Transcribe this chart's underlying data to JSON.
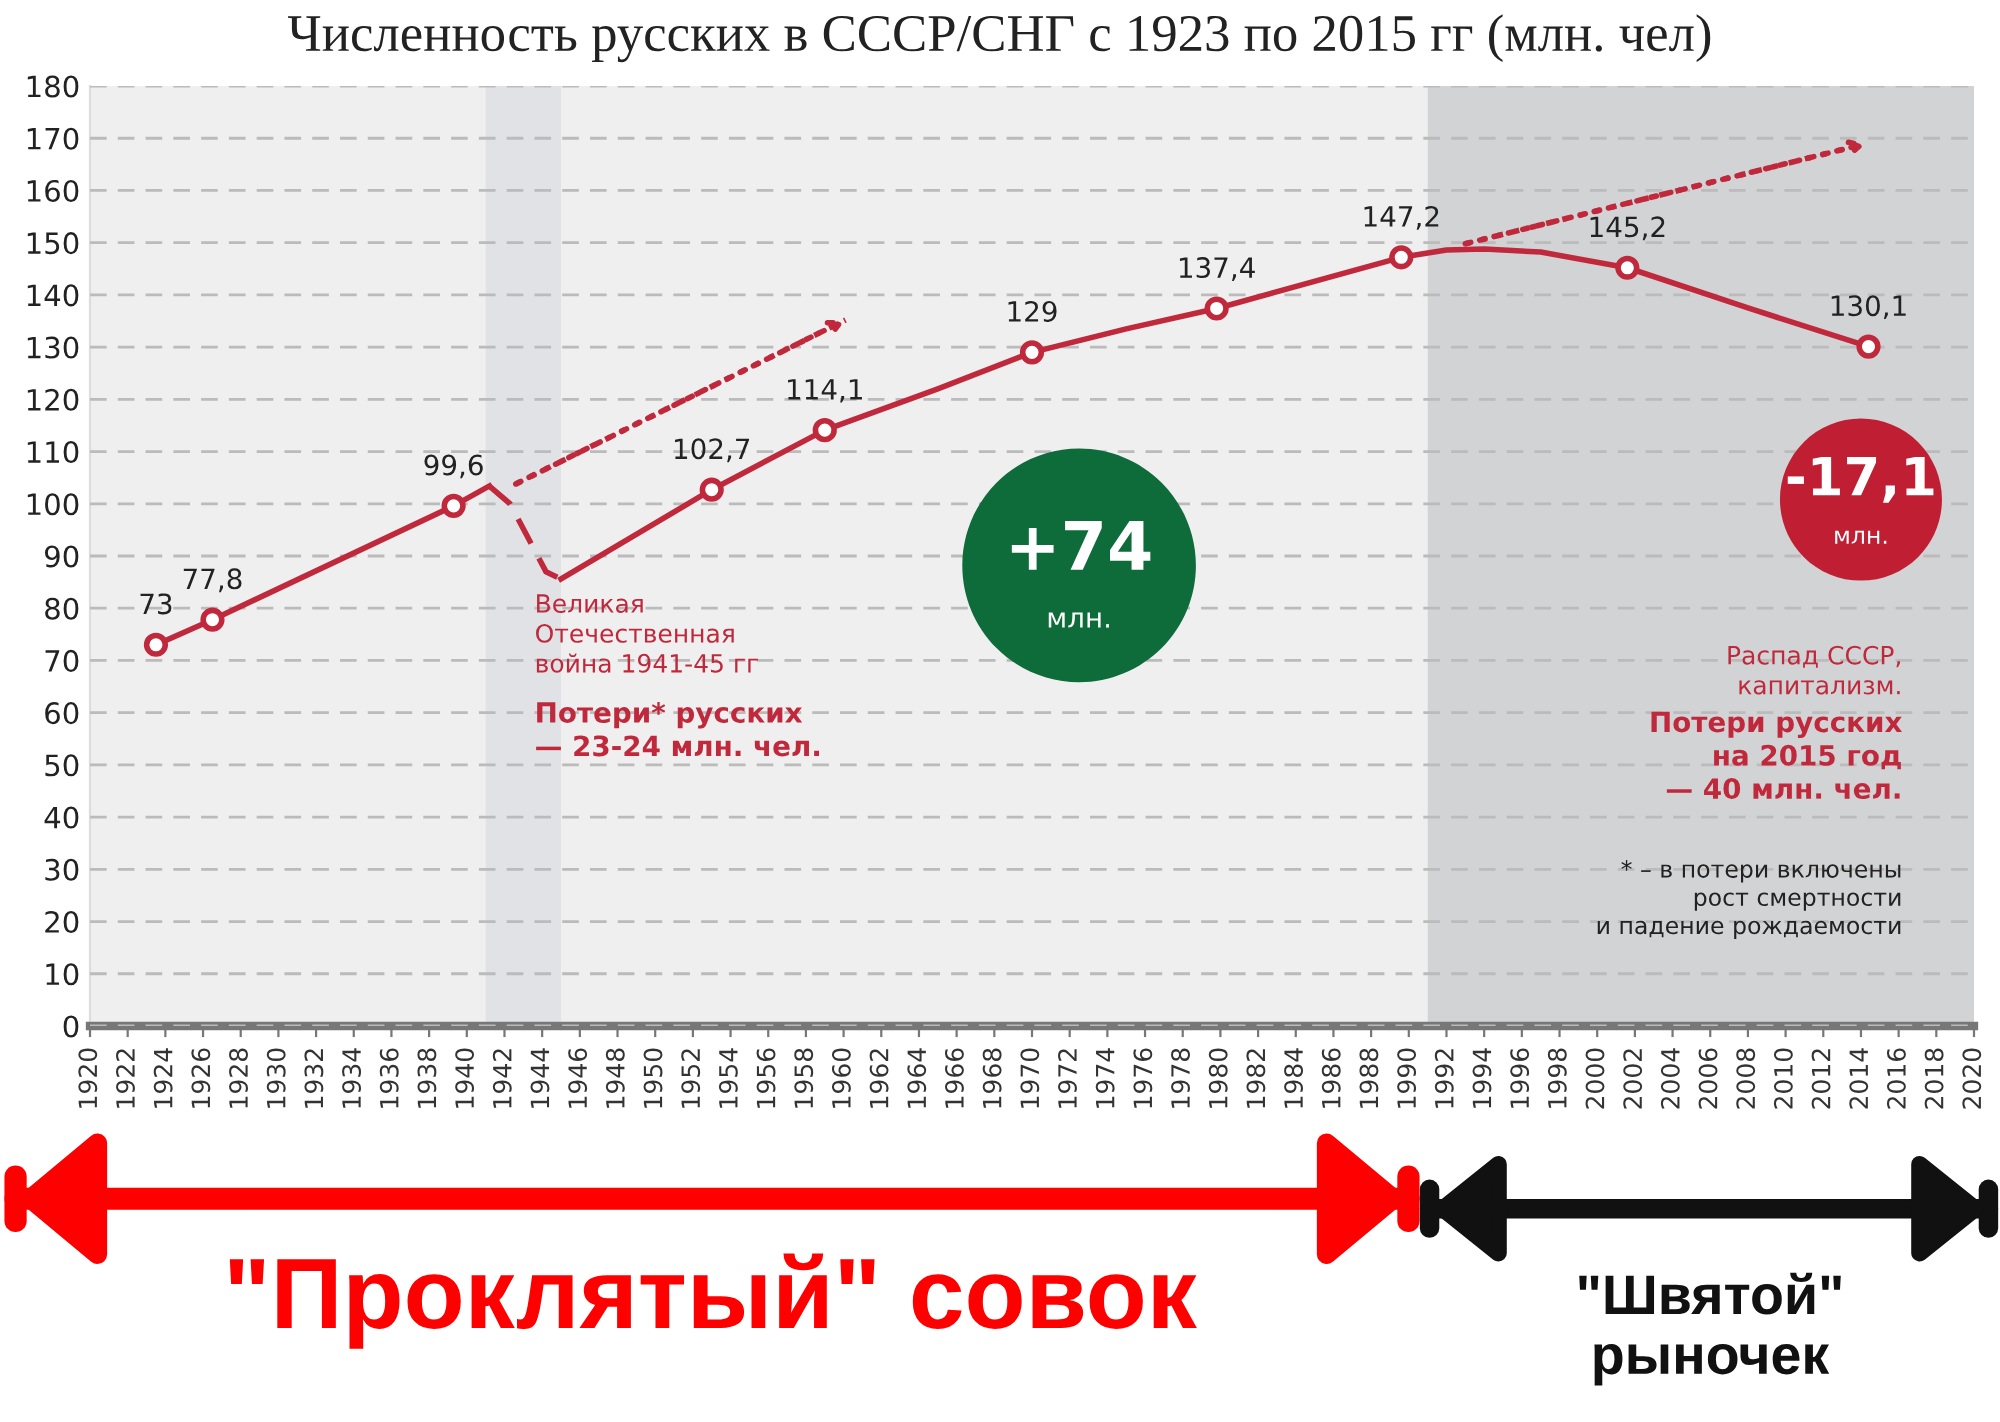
{
  "chart_data": {
    "type": "line",
    "title": "Численность русских в СССР/СНГ с 1923 по 2015 гг (млн. чел)",
    "xlim": [
      1920,
      2020
    ],
    "xticks": [
      1920,
      1922,
      1924,
      1926,
      1928,
      1930,
      1932,
      1934,
      1936,
      1938,
      1940,
      1942,
      1944,
      1946,
      1948,
      1950,
      1952,
      1954,
      1956,
      1958,
      1960,
      1962,
      1964,
      1966,
      1968,
      1970,
      1972,
      1974,
      1976,
      1978,
      1980,
      1982,
      1984,
      1986,
      1988,
      1990,
      1992,
      1994,
      1996,
      1998,
      2000,
      2002,
      2004,
      2006,
      2008,
      2010,
      2012,
      2014,
      2016,
      2018,
      2020
    ],
    "ylim": [
      0,
      180
    ],
    "yticks": [
      0,
      10,
      20,
      30,
      40,
      50,
      60,
      70,
      80,
      90,
      100,
      110,
      120,
      130,
      140,
      150,
      160,
      170,
      180
    ],
    "grid": "y",
    "legend": false,
    "series": [
      {
        "type": "line",
        "color": "#c0283c",
        "line_style": "solid",
        "x": [
          1923.5,
          1926.5,
          1939.3,
          1941.2
        ],
        "values": [
          73,
          77.8,
          99.6,
          103.4
        ]
      },
      {
        "type": "line",
        "color": "#c0283c",
        "line_style": "dashed",
        "x": [
          1941.2,
          1942.3,
          1944.2,
          1945
        ],
        "values": [
          103.4,
          100,
          87,
          85.6
        ]
      },
      {
        "type": "line",
        "color": "#c0283c",
        "line_style": "solid",
        "x": [
          1945,
          1953,
          1959,
          1965,
          1970,
          1975,
          1979.8,
          1989.6,
          1992,
          1994,
          1997,
          2001.6,
          2008,
          2014.4
        ],
        "values": [
          85.6,
          102.7,
          114.1,
          122,
          129,
          133.5,
          137.4,
          147.2,
          148.6,
          148.8,
          148.2,
          145.2,
          137.5,
          130.1
        ]
      },
      {
        "type": "line",
        "color": "#c0283c",
        "line_style": "dotted",
        "x": [
          1942.6,
          1960.1
        ],
        "values": [
          103.8,
          135.2
        ]
      },
      {
        "type": "line",
        "color": "#c0283c",
        "line_style": "dotted",
        "x": [
          1993,
          2014.3
        ],
        "values": [
          149.8,
          169
        ]
      },
      {
        "type": "scatter",
        "color": "#c0283c",
        "marker": "circle",
        "x": [
          1923.5,
          1926.5,
          1939.3,
          1953,
          1959,
          1970,
          1979.8,
          1989.6,
          2001.6,
          2014.4
        ],
        "values": [
          73,
          77.8,
          99.6,
          102.7,
          114.1,
          129,
          137.4,
          147.2,
          145.2,
          130.1
        ],
        "value_labels": [
          "73",
          "77,8",
          "99,6",
          "102,7",
          "114,1",
          "129",
          "137,4",
          "147,2",
          "145,2",
          "130,1"
        ]
      }
    ],
    "bands": [
      {
        "axis": "x",
        "from": 1920,
        "to": 1991,
        "color": "#efefef"
      },
      {
        "axis": "x",
        "from": 1941,
        "to": 1945,
        "color": "#e0e2e6"
      },
      {
        "axis": "x",
        "from": 1991,
        "to": 2020,
        "color": "#d2d3d5"
      }
    ],
    "annotations": [
      "Великая\nОтечественная\nвойна 1941-45 гг",
      "Потери* русских\n— 23-24 млн. чел.",
      "+74",
      "млн.",
      "-17,1",
      "млн.",
      "Распад СССР,\nкапитализм.",
      "Потери русских\nна 2015 год\n— 40 млн. чел.",
      "* – в потери включены\nрост смертности\nи падение рождаемости",
      "\"Проклятый\" совок",
      "\"Швятой\"\nрыночек"
    ]
  }
}
